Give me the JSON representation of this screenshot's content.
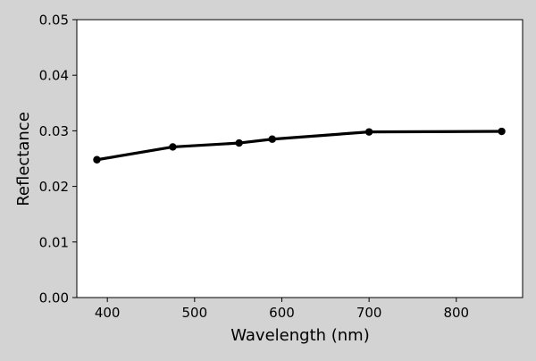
{
  "chart_data": {
    "type": "line",
    "title": "",
    "xlabel": "Wavelength (nm)",
    "ylabel": "Reflectance",
    "xlim": [
      365,
      876
    ],
    "ylim": [
      0.0,
      0.05
    ],
    "x_ticks": [
      400,
      500,
      600,
      700,
      800
    ],
    "x_tick_labels": [
      "400",
      "500",
      "600",
      "700",
      "800"
    ],
    "y_ticks": [
      0.0,
      0.01,
      0.02,
      0.03,
      0.04,
      0.05
    ],
    "y_tick_labels": [
      "0.00",
      "0.01",
      "0.02",
      "0.03",
      "0.04",
      "0.05"
    ],
    "grid": false,
    "series": [
      {
        "x": [
          388,
          475,
          551,
          589,
          700,
          852
        ],
        "y": [
          0.0248,
          0.0271,
          0.0278,
          0.0285,
          0.0298,
          0.0299
        ],
        "color": "#000000",
        "marker": "circle"
      }
    ]
  },
  "colors": {
    "figure_background": "#d3d3d3",
    "plot_background": "#ffffff",
    "axis": "#000000"
  }
}
